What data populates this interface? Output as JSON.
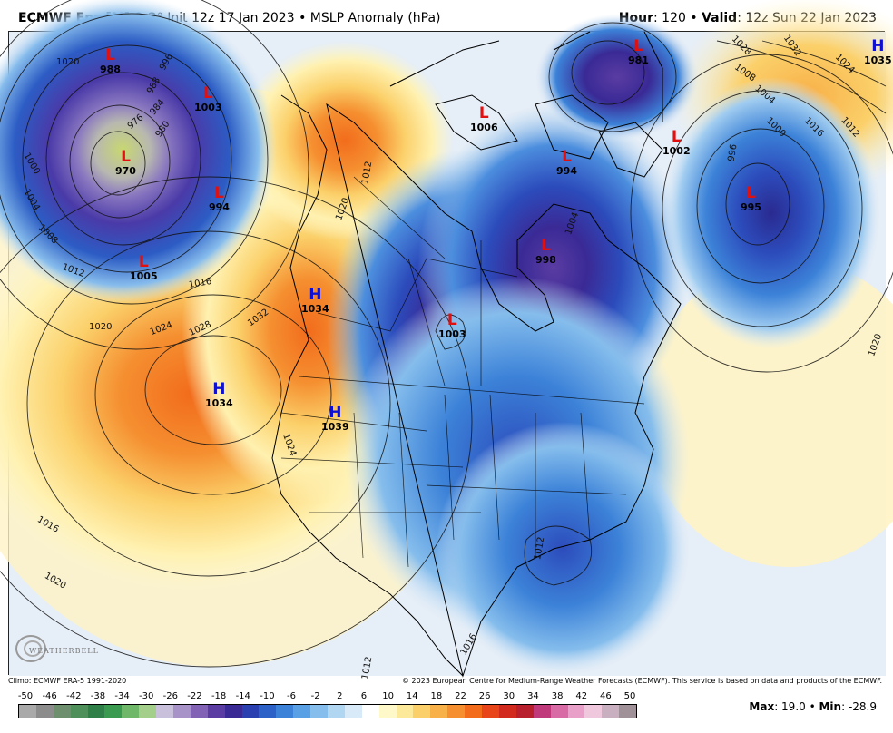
{
  "header": {
    "model": "ECMWF Ens [M] 0.2",
    "degree": "°",
    "init": " Init 12z 17 Jan 2023",
    "bullet": " • ",
    "field": "MSLP Anomaly (hPa)",
    "hour_label": "Hour",
    "hour_value": ": 120",
    "valid_label": "Valid",
    "valid_value": ": 12z Sun 22 Jan 2023"
  },
  "pressure_centers": [
    {
      "type": "L",
      "value": "988"
    },
    {
      "type": "L",
      "value": "1003"
    },
    {
      "type": "L",
      "value": "970"
    },
    {
      "type": "L",
      "value": "994"
    },
    {
      "type": "L",
      "value": "1005"
    },
    {
      "type": "H",
      "value": "1034"
    },
    {
      "type": "H",
      "value": "1034"
    },
    {
      "type": "H",
      "value": "1039"
    },
    {
      "type": "L",
      "value": "1003"
    },
    {
      "type": "L",
      "value": "1006"
    },
    {
      "type": "L",
      "value": "994"
    },
    {
      "type": "L",
      "value": "998"
    },
    {
      "type": "L",
      "value": "981"
    },
    {
      "type": "L",
      "value": "1002"
    },
    {
      "type": "L",
      "value": "995"
    },
    {
      "type": "H",
      "value": "1035"
    }
  ],
  "isobar_labels": [
    "996",
    "988",
    "984",
    "980",
    "976",
    "1000",
    "1004",
    "1008",
    "1012",
    "1016",
    "1020",
    "1024",
    "1028",
    "1032",
    "1016",
    "1020",
    "1012",
    "1020",
    "1028",
    "1032",
    "1024",
    "1012",
    "1008",
    "1004",
    "1000",
    "996",
    "1016",
    "1020",
    "1012",
    "1016",
    "1012",
    "1004",
    "1024",
    "1020"
  ],
  "footer": {
    "climo": "Climo: ECMWF ERA-5 1991-2020",
    "copyright": "© 2023 European Centre for Medium-Range Weather Forecasts (ECMWF). This service is based on data and products of the ECMWF.",
    "max_label": "Max",
    "max_value": ": 19.0",
    "bullet": " • ",
    "min_label": "Min",
    "min_value": ": -28.9"
  },
  "logo": {
    "text": "WEATHERBELL"
  },
  "colorbar": {
    "ticks": [
      "-50",
      "-46",
      "-42",
      "-38",
      "-34",
      "-30",
      "-26",
      "-22",
      "-18",
      "-14",
      "-10",
      "-6",
      "-2",
      "2",
      "6",
      "10",
      "14",
      "18",
      "22",
      "26",
      "30",
      "34",
      "38",
      "42",
      "46",
      "50"
    ],
    "colors": [
      "#a9a9a9",
      "#8c8c8c",
      "#6e8f6e",
      "#4f8f5a",
      "#2f7f48",
      "#3a9a50",
      "#6fb86a",
      "#a3cf8a",
      "#c9c1dc",
      "#a793c8",
      "#8262b4",
      "#5a3ca2",
      "#3a2a96",
      "#2a3fb0",
      "#2c62c8",
      "#3c82d8",
      "#5aa0e4",
      "#85bdec",
      "#b0d6f2",
      "#d8e9f8",
      "#ffffff",
      "#fff8c8",
      "#fde99a",
      "#fbd06a",
      "#f8b048",
      "#f58f30",
      "#f26c1c",
      "#e8451a",
      "#d22a1e",
      "#b8202e",
      "#c0397a",
      "#d86aa6",
      "#e8a0c8",
      "#f0c8de",
      "#c8b0c0",
      "#a09098"
    ]
  }
}
